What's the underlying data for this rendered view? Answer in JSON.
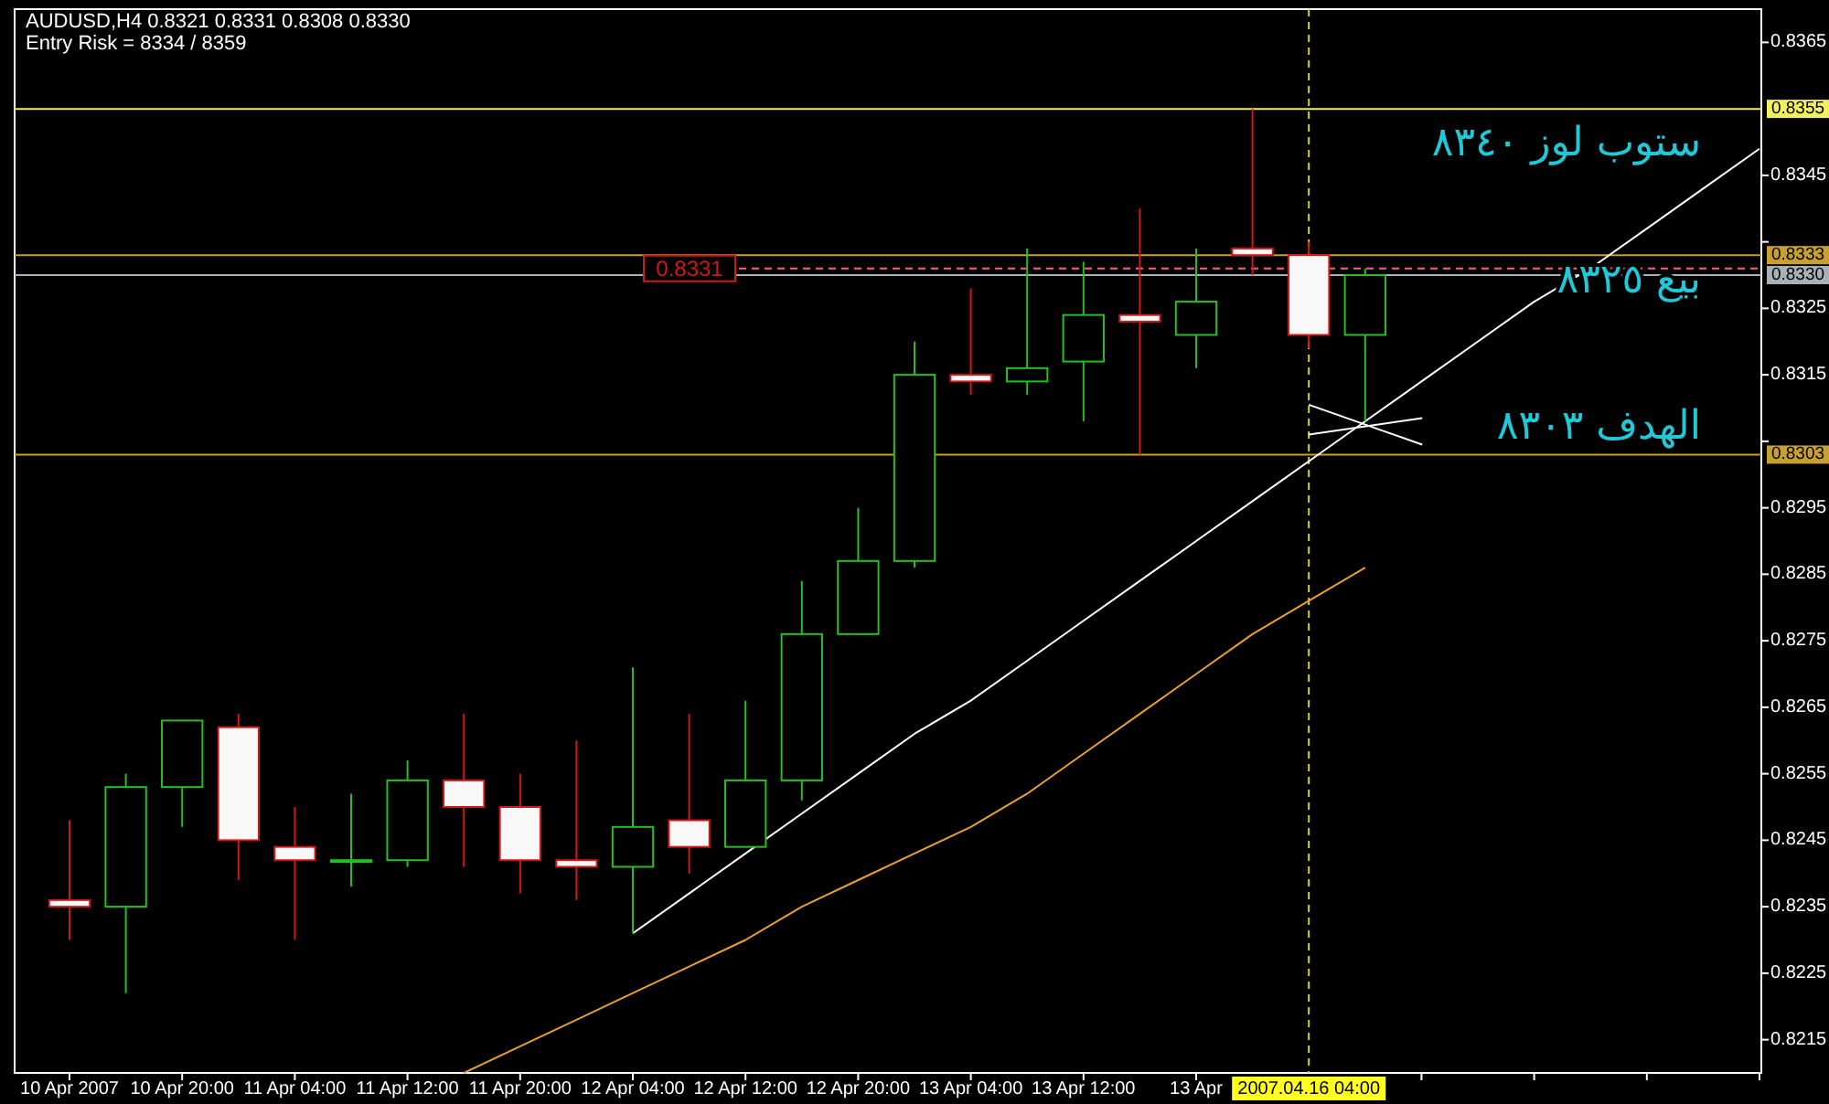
{
  "chart_data": {
    "type": "candlestick",
    "title": "AUDUSD,H4  0.8321 0.8331 0.8308 0.8330",
    "subtitle": "Entry Risk = 8334 / 8359",
    "categories": [
      "10 Apr 2007",
      null,
      "10 Apr 20:00",
      null,
      "11 Apr 04:00",
      null,
      "11 Apr 12:00",
      null,
      "11 Apr 20:00",
      null,
      "12 Apr 04:00",
      null,
      "12 Apr 12:00",
      null,
      "12 Apr 20:00",
      null,
      "13 Apr 04:00",
      null,
      "13 Apr 12:00",
      null,
      "13 Apr",
      null,
      "2007.04.16 04:00",
      null,
      null,
      null,
      null,
      null,
      null,
      null,
      null
    ],
    "ohlc": [
      [
        0.8236,
        0.8248,
        0.823,
        0.8235
      ],
      [
        0.8235,
        0.8255,
        0.8222,
        0.8253
      ],
      [
        0.8253,
        0.8263,
        0.8247,
        0.8263
      ],
      [
        0.8262,
        0.8264,
        0.8239,
        0.8245
      ],
      [
        0.8244,
        0.825,
        0.823,
        0.8242
      ],
      [
        0.8242,
        0.8252,
        0.8238,
        0.8242
      ],
      [
        0.8242,
        0.8257,
        0.8241,
        0.8254
      ],
      [
        0.8254,
        0.8264,
        0.8241,
        0.825
      ],
      [
        0.825,
        0.8255,
        0.8237,
        0.8242
      ],
      [
        0.8242,
        0.826,
        0.8236,
        0.8241
      ],
      [
        0.8241,
        0.8271,
        0.8231,
        0.8247
      ],
      [
        0.8248,
        0.8264,
        0.824,
        0.8244
      ],
      [
        0.8244,
        0.8266,
        0.8244,
        0.8254
      ],
      [
        0.8254,
        0.8284,
        0.8251,
        0.8276
      ],
      [
        0.8276,
        0.8295,
        0.8276,
        0.8287
      ],
      [
        0.8287,
        0.832,
        0.8286,
        0.8315
      ],
      [
        0.8315,
        0.8328,
        0.8312,
        0.8314
      ],
      [
        0.8314,
        0.8334,
        0.8312,
        0.8316
      ],
      [
        0.8317,
        0.8332,
        0.8308,
        0.8324
      ],
      [
        0.8324,
        0.834,
        0.8303,
        0.8323
      ],
      [
        0.8321,
        0.8334,
        0.8316,
        0.8326
      ],
      [
        0.8334,
        0.8355,
        0.833,
        0.8333
      ],
      [
        0.8333,
        0.8335,
        0.8319,
        0.8321
      ],
      [
        0.8321,
        0.8331,
        0.8308,
        0.833
      ],
      null,
      null,
      null,
      null,
      null,
      null,
      null
    ],
    "series": [
      {
        "type": "line",
        "color": "#ffffff",
        "values": [
          null,
          null,
          null,
          null,
          null,
          null,
          null,
          null,
          null,
          null,
          0.8231,
          0.8237,
          0.8243,
          0.8249,
          0.8255,
          0.8261,
          0.8266,
          0.8272,
          0.8278,
          0.8284,
          0.829,
          0.8296,
          0.8302,
          0.8308,
          0.8314,
          0.832,
          0.8326,
          0.8331,
          0.8337,
          0.8343,
          0.8349
        ]
      },
      {
        "type": "line",
        "color": "#e8a030",
        "values": [
          null,
          null,
          null,
          null,
          null,
          null,
          null,
          0.821,
          0.8214,
          0.8218,
          0.8222,
          0.8226,
          0.823,
          0.8235,
          0.8239,
          0.8243,
          0.8247,
          0.8252,
          0.8258,
          0.8264,
          0.827,
          0.8276,
          0.8281,
          0.8286,
          null,
          null,
          null,
          null,
          null,
          null,
          null
        ]
      }
    ],
    "ylim": [
      0.821,
      0.837
    ],
    "yticks": [
      0.8365,
      0.8345,
      {
        "value": 0.8335,
        "label": null
      },
      0.8325,
      0.8315,
      {
        "value": 0.8305,
        "label": null
      },
      0.8295,
      0.8285,
      0.8275,
      0.8265,
      0.8255,
      0.8245,
      0.8235,
      0.8225,
      0.8215
    ],
    "ref_lines": [
      {
        "axis": "y",
        "value": 0.8355,
        "label": "0.8355",
        "color": "#f0f060"
      },
      {
        "axis": "y",
        "value": 0.8333,
        "label": "0.8333",
        "color": "#c8a030"
      },
      {
        "axis": "y",
        "value": 0.833,
        "label": "0.8330",
        "color": "#a8b0b8"
      },
      {
        "axis": "y",
        "value": 0.8303,
        "label": "0.8303",
        "color": "#c8a030"
      },
      {
        "axis": "y",
        "value": 0.8331,
        "label": "0.8331",
        "color": "#ff5c8a",
        "line_style": "dashed"
      },
      {
        "axis": "x",
        "value": "2007.04.16 04:00",
        "color": "#d8d040",
        "line_style": "dashed"
      }
    ],
    "annotations": [
      "ستوب لوز ٨٣٤٠",
      "بيع ٨٣٢٥",
      "الهدف ٨٣٠٣"
    ],
    "grid": false
  }
}
